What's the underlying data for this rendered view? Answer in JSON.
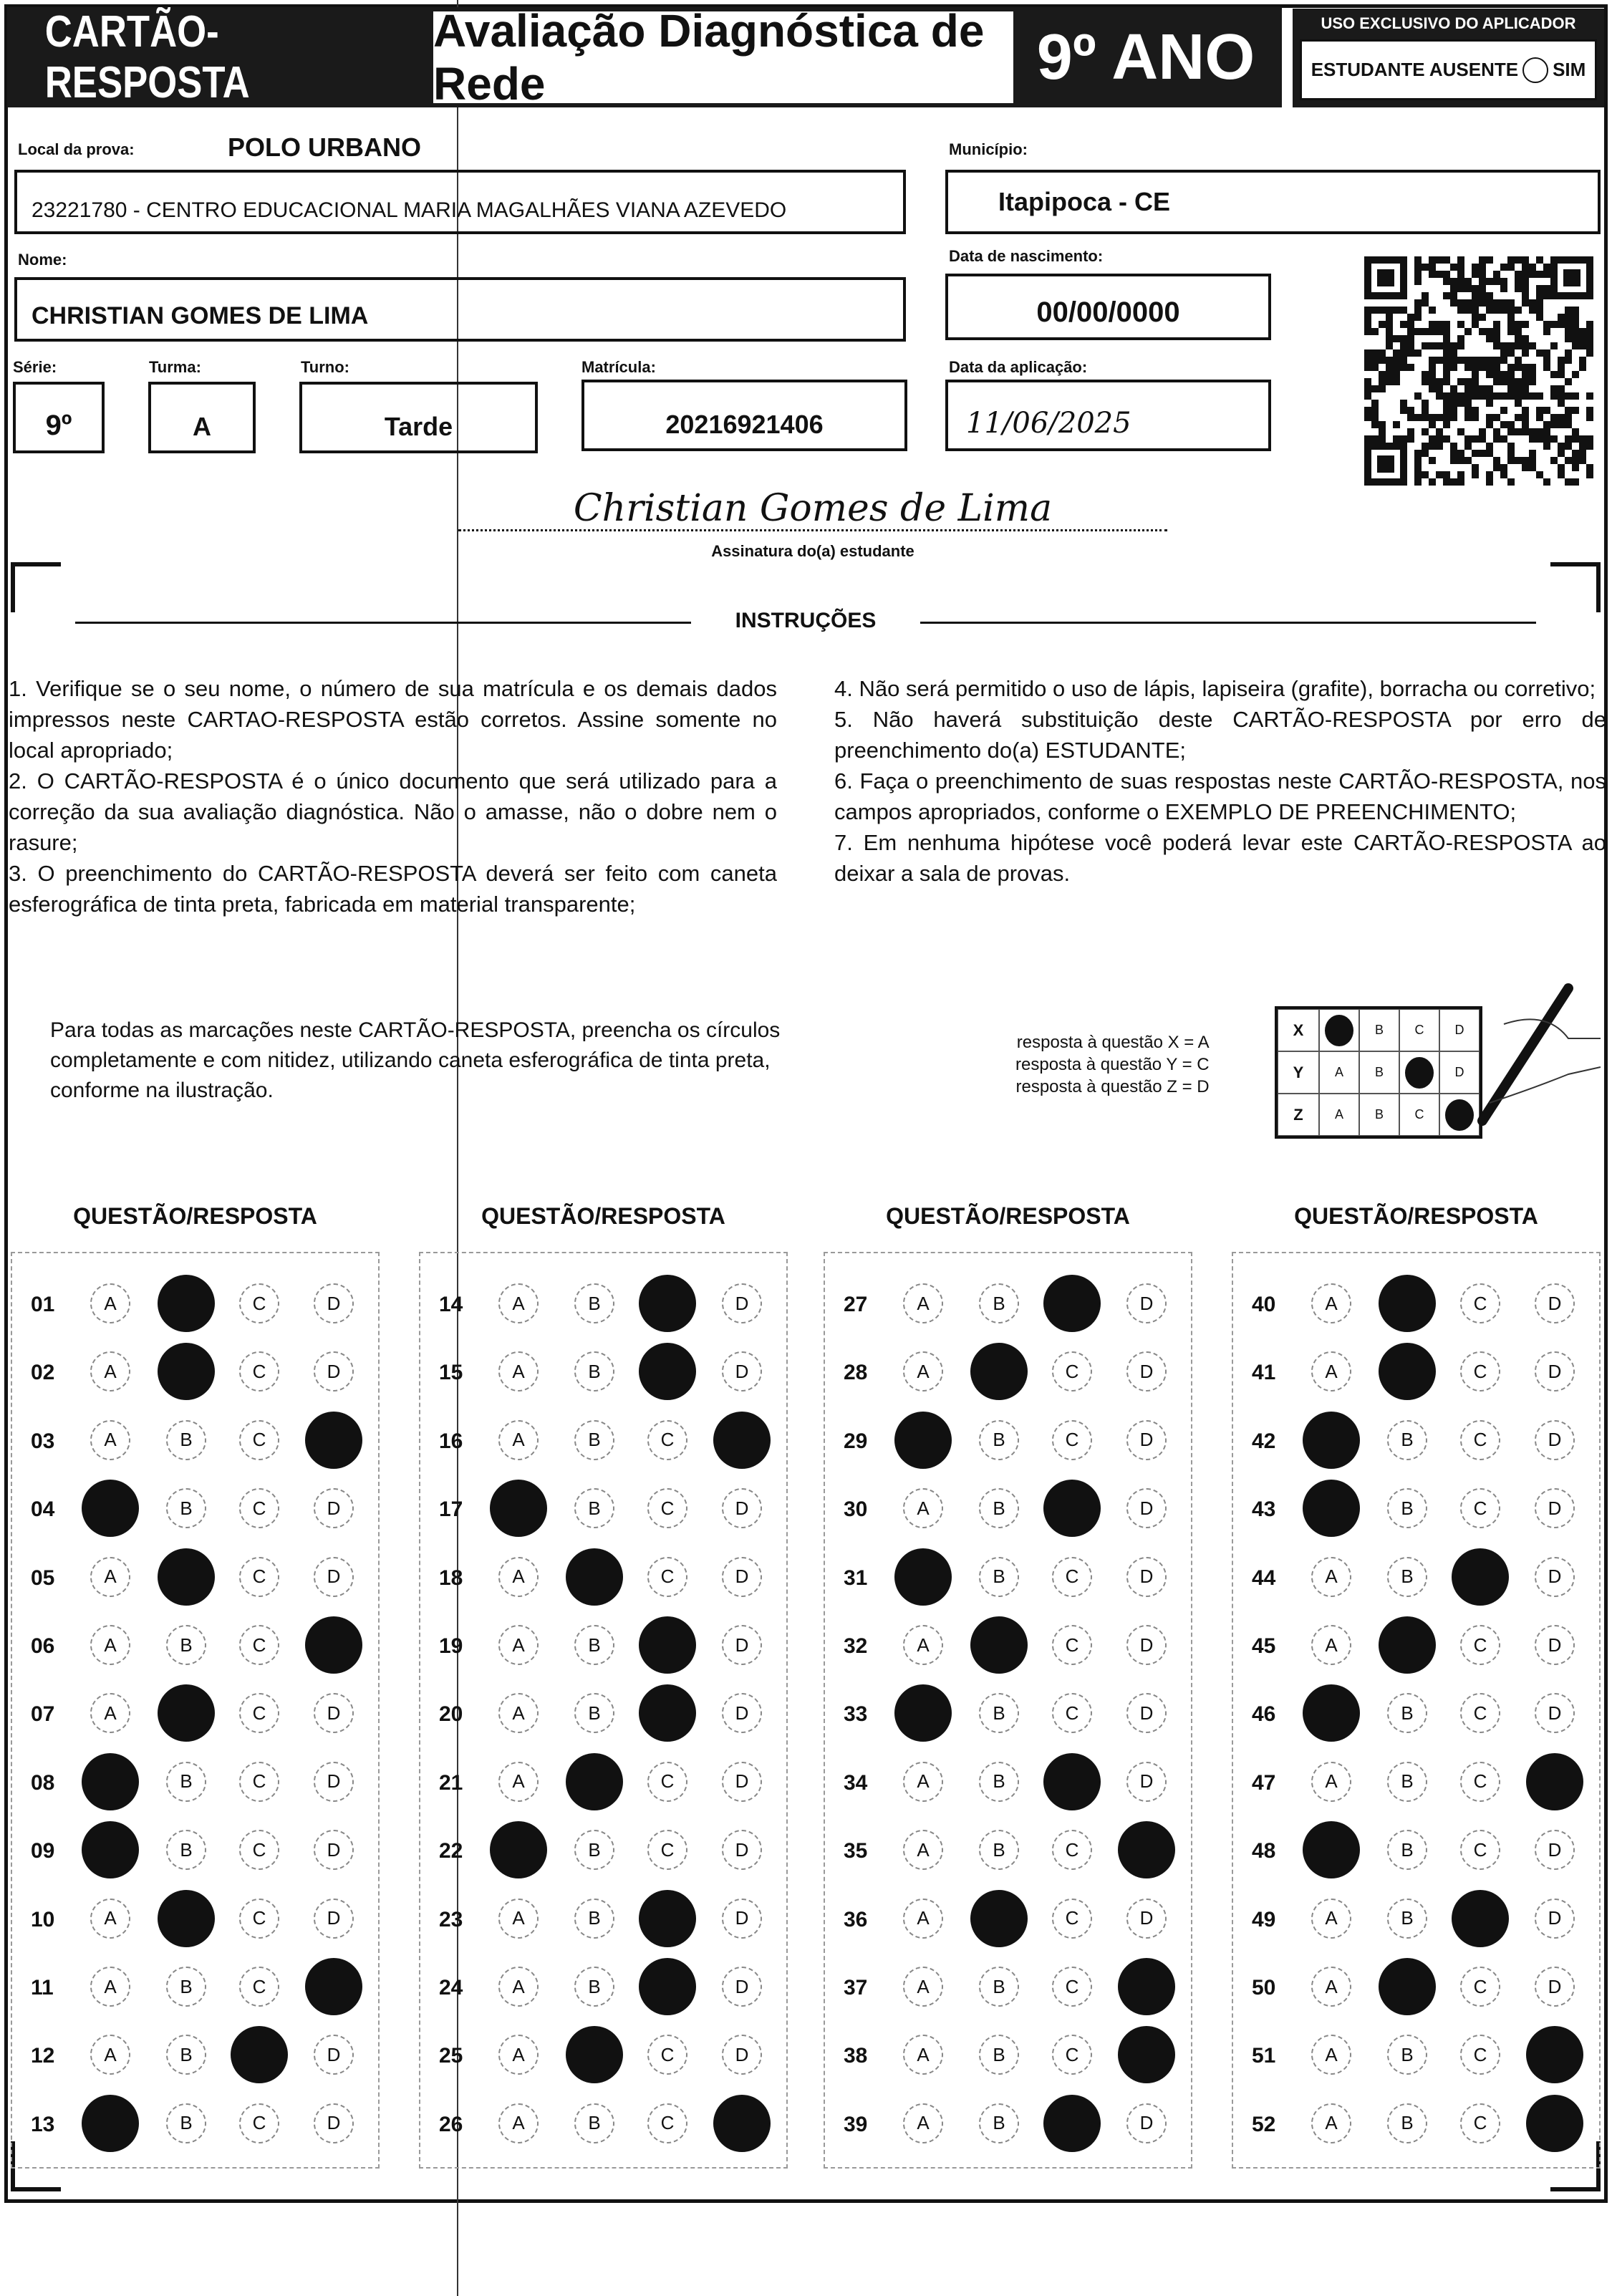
{
  "header": {
    "card_title": "CARTÃO-RESPOSTA",
    "exam_title": "Avaliação Diagnóstica de Rede",
    "grade": "9º ANO",
    "applicator_title": "USO EXCLUSIVO DO APLICADOR",
    "absent_label": "ESTUDANTE AUSENTE",
    "absent_option": "SIM"
  },
  "form": {
    "local_label": "Local da prova:",
    "local_value": "POLO URBANO",
    "school": "23221780 - CENTRO EDUCACIONAL MARIA MAGALHÃES VIANA AZEVEDO",
    "municipio_label": "Município:",
    "municipio": "Itapipoca - CE",
    "nome_label": "Nome:",
    "nome": "CHRISTIAN GOMES DE LIMA",
    "nasc_label": "Data de nascimento:",
    "nasc": "00/00/0000",
    "serie_label": "Série:",
    "serie": "9º",
    "turma_label": "Turma:",
    "turma": "A",
    "turno_label": "Turno:",
    "turno": "Tarde",
    "matricula_label": "Matrícula:",
    "matricula": "20216921406",
    "aplic_label": "Data da aplicação:",
    "aplic": "11/06/2025",
    "signature": "Christian Gomes de Lima",
    "signature_label": "Assinatura do(a) estudante"
  },
  "instructions": {
    "title": "INSTRUÇÕES",
    "left": "1. Verifique se o seu nome, o número de sua matrícula e os demais dados impressos neste CARTAO-RESPOSTA estão corretos. Assine somente no local apropriado;\n2. O CARTÃO-RESPOSTA é o único documento que será utilizado para a correção da sua avaliação diagnóstica. Não o amasse, não o dobre nem o rasure;\n3. O preenchimento do CARTÃO-RESPOSTA deverá ser feito com caneta esferográfica de tinta preta, fabricada em material transparente;",
    "right": "4. Não será permitido o uso de lápis, lapiseira (grafite), borracha ou corretivo;\n5. Não haverá substituição deste CARTÃO-RESPOSTA por erro de preenchimento do(a) ESTUDANTE;\n6. Faça o preenchimento de suas respostas neste CARTÃO-RESPOSTA, nos campos apropriados, conforme o EXEMPLO DE PREENCHIMENTO;\n7. Em nenhuma hipótese você poderá levar este CARTÃO-RESPOSTA ao deixar a sala de provas.",
    "fill_note": "Para todas as marcações neste CARTÃO-RESPOSTA, preencha os círculos completamente e com nitidez, utilizando caneta esferográfica de tinta preta, conforme na ilustração.",
    "examples": [
      "resposta à questão X = A",
      "resposta à questão Y = C",
      "resposta à questão Z = D"
    ],
    "example_grid": [
      {
        "q": "X",
        "mark": "A"
      },
      {
        "q": "Y",
        "mark": "C"
      },
      {
        "q": "Z",
        "mark": "D"
      }
    ]
  },
  "answers": {
    "column_title": "QUESTÃO/RESPOSTA",
    "options": [
      "A",
      "B",
      "C",
      "D"
    ],
    "columns": [
      [
        [
          "01",
          "B"
        ],
        [
          "02",
          "B"
        ],
        [
          "03",
          "D"
        ],
        [
          "04",
          "A"
        ],
        [
          "05",
          "B"
        ],
        [
          "06",
          "D"
        ],
        [
          "07",
          "B"
        ],
        [
          "08",
          "A"
        ],
        [
          "09",
          "A"
        ],
        [
          "10",
          "B"
        ],
        [
          "11",
          "D"
        ],
        [
          "12",
          "C"
        ],
        [
          "13",
          "A"
        ]
      ],
      [
        [
          "14",
          "C"
        ],
        [
          "15",
          "C"
        ],
        [
          "16",
          "D"
        ],
        [
          "17",
          "A"
        ],
        [
          "18",
          "B"
        ],
        [
          "19",
          "C"
        ],
        [
          "20",
          "C"
        ],
        [
          "21",
          "B"
        ],
        [
          "22",
          "A"
        ],
        [
          "23",
          "C"
        ],
        [
          "24",
          "C"
        ],
        [
          "25",
          "B"
        ],
        [
          "26",
          "D"
        ]
      ],
      [
        [
          "27",
          "C"
        ],
        [
          "28",
          "B"
        ],
        [
          "29",
          "A"
        ],
        [
          "30",
          "C"
        ],
        [
          "31",
          "A"
        ],
        [
          "32",
          "B"
        ],
        [
          "33",
          "A"
        ],
        [
          "34",
          "C"
        ],
        [
          "35",
          "D"
        ],
        [
          "36",
          "B"
        ],
        [
          "37",
          "D"
        ],
        [
          "38",
          "D"
        ],
        [
          "39",
          "C"
        ]
      ],
      [
        [
          "40",
          "B"
        ],
        [
          "41",
          "B"
        ],
        [
          "42",
          "A"
        ],
        [
          "43",
          "A"
        ],
        [
          "44",
          "C"
        ],
        [
          "45",
          "B"
        ],
        [
          "46",
          "A"
        ],
        [
          "47",
          "D"
        ],
        [
          "48",
          "A"
        ],
        [
          "49",
          "C"
        ],
        [
          "50",
          "B"
        ],
        [
          "51",
          "D"
        ],
        [
          "52",
          "D"
        ]
      ]
    ]
  }
}
